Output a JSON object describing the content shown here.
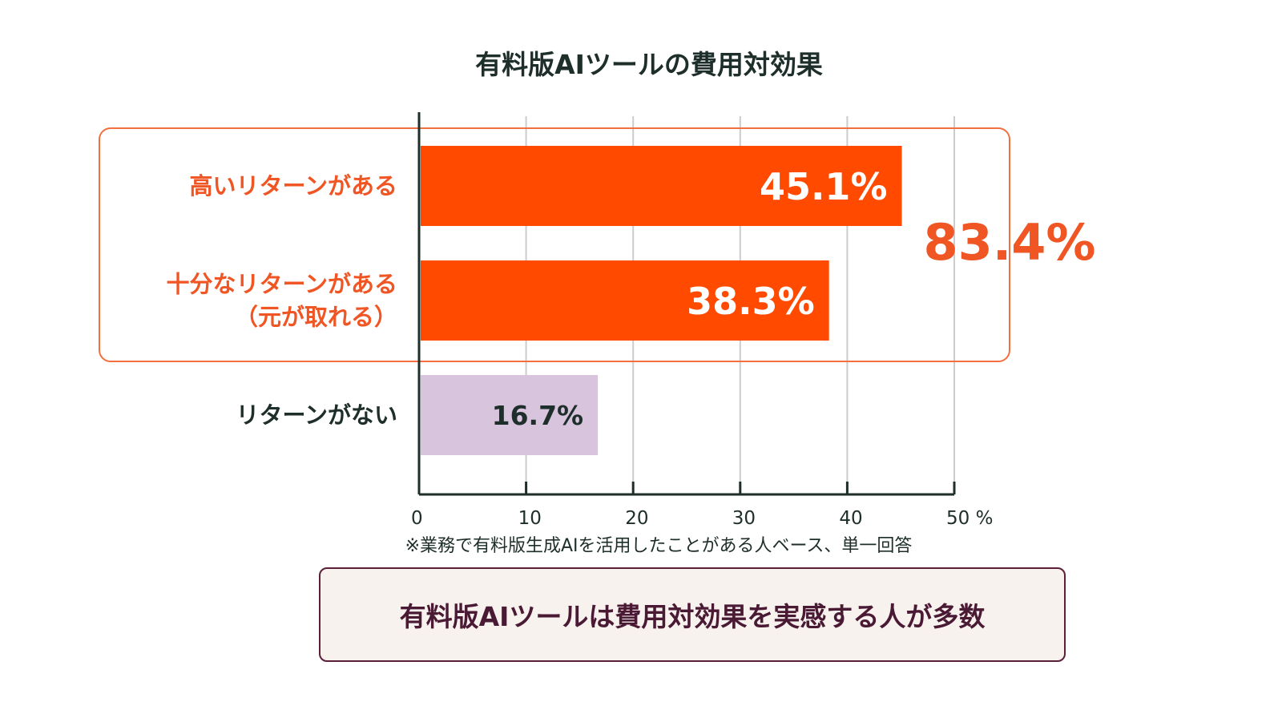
{
  "colors": {
    "accent": "#ff4a00",
    "accent_text": "#f05524",
    "muted_bar": "#d8c4dd",
    "dark_text": "#1e2e2a",
    "grid": "#cccccc",
    "group_box": "#f36f3f",
    "conclusion_border": "#5b1f3a",
    "conclusion_bg": "#f8f2ee",
    "conclusion_text": "#4a1a34"
  },
  "chart_data": {
    "type": "bar",
    "orientation": "horizontal",
    "title": "有料版AIツールの費用対効果",
    "categories": [
      [
        "高いリターンがある"
      ],
      [
        "十分なリターンがある",
        "（元が取れる）"
      ],
      [
        "リターンがない"
      ]
    ],
    "values": [
      45.1,
      38.3,
      16.7
    ],
    "value_labels": [
      "45.1%",
      "38.3%",
      "16.7%"
    ],
    "xlim": [
      0,
      50
    ],
    "xticks": [
      0,
      10,
      20,
      30,
      40,
      50
    ],
    "xtick_labels": [
      "0",
      "10",
      "20",
      "30",
      "40",
      "50 %"
    ],
    "grid": true,
    "group_annotation": {
      "label": "83.4%",
      "members": [
        0,
        1
      ]
    },
    "footnote": "※業務で有料版生成AIを活用したことがある人ベース、単一回答"
  },
  "conclusion": {
    "text": "有料版AIツールは費用対効果を実感する人が多数"
  }
}
